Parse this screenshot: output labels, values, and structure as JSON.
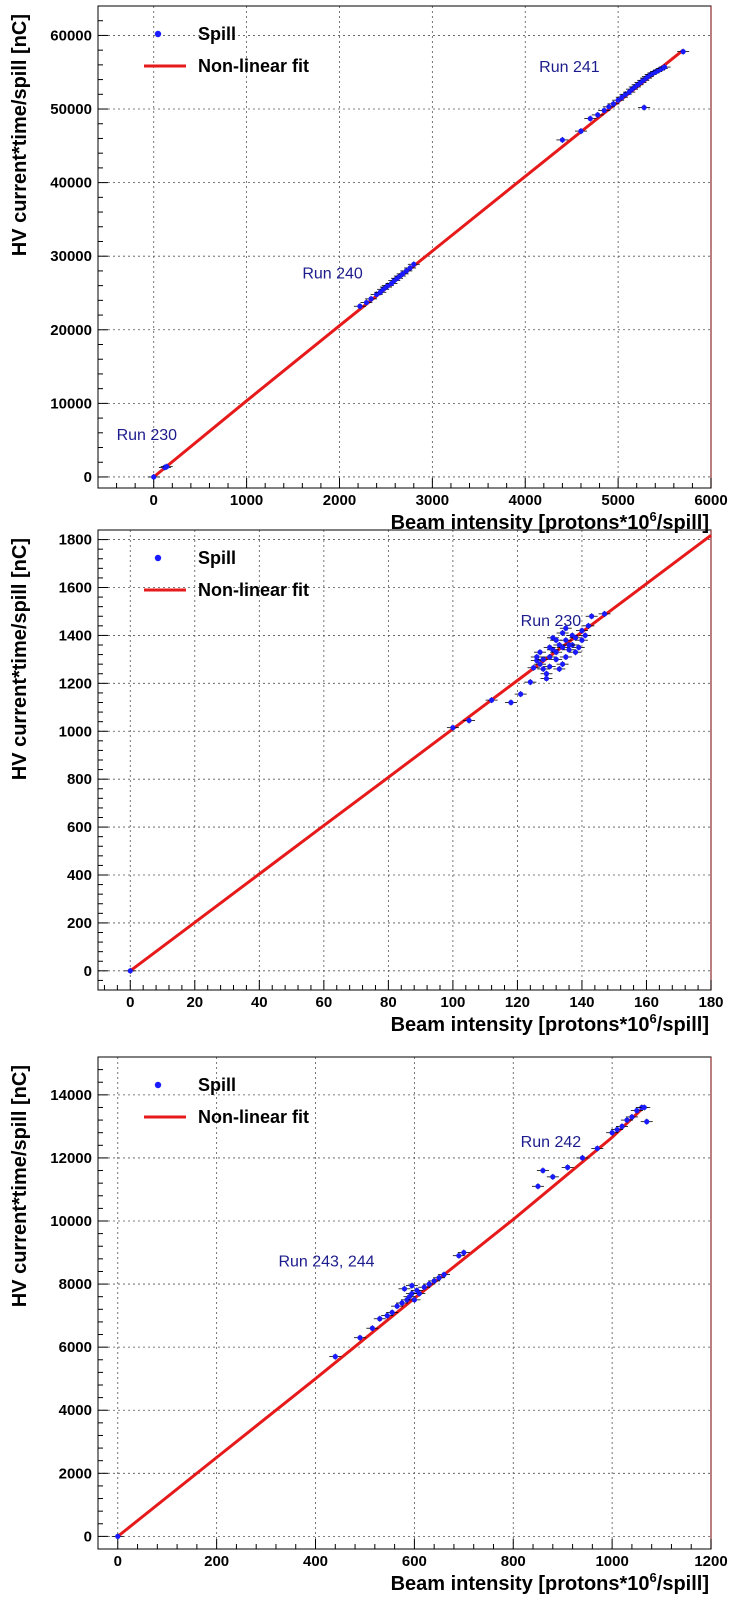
{
  "chart_data": [
    {
      "type": "scatter",
      "title": "",
      "xlabel": "Beam intensity [protons*10",
      "xlabel_sup": "6",
      "xlabel_tail": "/spill]",
      "ylabel": "HV current*time/spill [nC]",
      "xlim": [
        -600,
        6000
      ],
      "ylim": [
        -1500,
        64000
      ],
      "xticks": [
        0,
        1000,
        2000,
        3000,
        4000,
        5000,
        6000
      ],
      "yticks": [
        0,
        10000,
        20000,
        30000,
        40000,
        50000,
        60000
      ],
      "grid": true,
      "legend": {
        "placement": "top-left",
        "entries": [
          "Spill",
          "Non-linear fit"
        ]
      },
      "annotations": [
        {
          "text": "Run 230",
          "x": -400,
          "y": 5000
        },
        {
          "text": "Run 240",
          "x": 1600,
          "y": 27000
        },
        {
          "text": "Run 241",
          "x": 4150,
          "y": 55000
        }
      ],
      "series": [
        {
          "name": "Spill",
          "kind": "points",
          "color": "#1a1aff",
          "x": [
            0,
            120,
            140,
            2220,
            2290,
            2340,
            2400,
            2440,
            2470,
            2500,
            2520,
            2560,
            2590,
            2620,
            2650,
            2680,
            2720,
            2760,
            2800,
            4400,
            4600,
            4700,
            4780,
            4850,
            4900,
            4950,
            5000,
            5040,
            5080,
            5120,
            5150,
            5180,
            5210,
            5240,
            5270,
            5300,
            5320,
            5350,
            5380,
            5410,
            5440,
            5470,
            5500,
            5280,
            5700
          ],
          "y": [
            0,
            1300,
            1400,
            23200,
            23700,
            24200,
            24800,
            25100,
            25500,
            25800,
            26000,
            26300,
            26700,
            27000,
            27300,
            27600,
            28000,
            28400,
            28900,
            45800,
            47000,
            48700,
            49200,
            49800,
            50300,
            50700,
            51200,
            51600,
            52000,
            52300,
            52700,
            53000,
            53300,
            53600,
            53900,
            54200,
            54400,
            54700,
            54900,
            55100,
            55300,
            55500,
            55700,
            50200,
            57800
          ]
        },
        {
          "name": "Non-linear fit",
          "kind": "line",
          "color": "#e61a1a",
          "x": [
            0,
            1000,
            2000,
            3000,
            4000,
            5000,
            5700
          ],
          "y": [
            0,
            10350,
            20550,
            30700,
            40850,
            50950,
            58000
          ]
        }
      ]
    },
    {
      "type": "scatter",
      "title": "",
      "xlabel": "Beam intensity [protons*10",
      "xlabel_sup": "6",
      "xlabel_tail": "/spill]",
      "ylabel": "HV current*time/spill [nC]",
      "xlim": [
        -10,
        180
      ],
      "ylim": [
        -80,
        1840
      ],
      "xticks": [
        0,
        20,
        40,
        60,
        80,
        100,
        120,
        140,
        160,
        180
      ],
      "yticks": [
        0,
        200,
        400,
        600,
        800,
        1000,
        1200,
        1400,
        1600,
        1800
      ],
      "grid": true,
      "legend": {
        "placement": "top-left",
        "entries": [
          "Spill",
          "Non-linear fit"
        ]
      },
      "annotations": [
        {
          "text": "Run 230",
          "x": 121,
          "y": 1440
        }
      ],
      "series": [
        {
          "name": "Spill",
          "kind": "points",
          "color": "#1a1aff",
          "x": [
            0,
            100,
            105,
            112,
            118,
            121,
            124,
            125,
            126,
            127,
            128,
            129,
            130,
            130,
            131,
            132,
            132,
            133,
            134,
            134,
            135,
            135,
            136,
            137,
            137,
            138,
            139,
            140,
            140,
            141,
            142,
            143,
            127,
            129,
            131,
            133,
            135,
            138,
            130,
            134,
            136,
            132,
            147,
            128,
            126
          ],
          "y": [
            0,
            1015,
            1045,
            1130,
            1120,
            1155,
            1205,
            1265,
            1295,
            1280,
            1300,
            1240,
            1310,
            1270,
            1340,
            1330,
            1300,
            1360,
            1280,
            1350,
            1380,
            1310,
            1340,
            1400,
            1360,
            1390,
            1350,
            1420,
            1380,
            1400,
            1440,
            1480,
            1330,
            1220,
            1390,
            1260,
            1430,
            1330,
            1350,
            1410,
            1360,
            1380,
            1490,
            1260,
            1310
          ]
        },
        {
          "name": "Non-linear fit",
          "kind": "line",
          "color": "#e61a1a",
          "x": [
            0,
            20,
            40,
            60,
            80,
            100,
            120,
            140,
            160,
            180
          ],
          "y": [
            0,
            202,
            404,
            606,
            808,
            1010,
            1212,
            1414,
            1616,
            1818
          ]
        }
      ]
    },
    {
      "type": "scatter",
      "title": "",
      "xlabel": "Beam intensity [protons*10",
      "xlabel_sup": "6",
      "xlabel_tail": "/spill]",
      "ylabel": "HV current*time/spill [nC]",
      "xlim": [
        -40,
        1200
      ],
      "ylim": [
        -400,
        15200
      ],
      "xticks": [
        0,
        200,
        400,
        600,
        800,
        1000,
        1200
      ],
      "yticks": [
        0,
        2000,
        4000,
        6000,
        8000,
        10000,
        12000,
        14000
      ],
      "grid": true,
      "legend": {
        "placement": "top-left",
        "entries": [
          "Spill",
          "Non-linear fit"
        ]
      },
      "annotations": [
        {
          "text": "Run 242",
          "x": 815,
          "y": 12350
        },
        {
          "text": "Run 243, 244",
          "x": 325,
          "y": 8550
        }
      ],
      "series": [
        {
          "name": "Spill",
          "kind": "points",
          "color": "#1a1aff",
          "x": [
            0,
            440,
            490,
            515,
            530,
            545,
            555,
            565,
            575,
            585,
            590,
            595,
            600,
            605,
            610,
            620,
            630,
            640,
            650,
            660,
            690,
            700,
            850,
            860,
            880,
            910,
            940,
            970,
            1000,
            1010,
            1020,
            1030,
            1040,
            1050,
            1060,
            1070,
            1065,
            580,
            595
          ],
          "y": [
            0,
            5700,
            6300,
            6600,
            6900,
            7000,
            7100,
            7300,
            7400,
            7500,
            7600,
            7700,
            7500,
            7800,
            7700,
            7900,
            8000,
            8100,
            8200,
            8300,
            8900,
            9000,
            11100,
            11600,
            11400,
            11700,
            12000,
            12300,
            12800,
            12900,
            13000,
            13200,
            13300,
            13500,
            13600,
            13150,
            13600,
            7850,
            7950
          ]
        },
        {
          "name": "Non-linear fit",
          "kind": "line",
          "color": "#e61a1a",
          "x": [
            0,
            200,
            400,
            600,
            800,
            1000,
            1060
          ],
          "y": [
            0,
            2500,
            5000,
            7550,
            10050,
            12650,
            13550
          ]
        }
      ]
    }
  ]
}
